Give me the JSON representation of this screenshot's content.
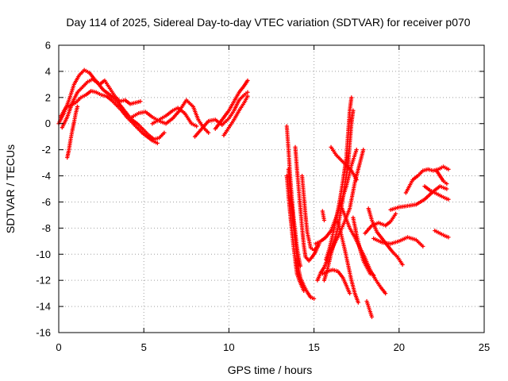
{
  "chart_data": {
    "type": "scatter",
    "title": "Day 114 of 2025, Sidereal Day-to-day VTEC variation (SDTVAR) for receiver p070",
    "xlabel": "GPS time / hours",
    "ylabel": "SDTVAR / TECUs",
    "xlim": [
      0,
      25
    ],
    "ylim": [
      -16,
      6
    ],
    "xticks": [
      "0",
      "5",
      "10",
      "15",
      "20",
      "25"
    ],
    "yticks": [
      "6",
      "4",
      "2",
      "0",
      "-2",
      "-4",
      "-6",
      "-8",
      "-10",
      "-12",
      "-14",
      "-16"
    ],
    "grid": true,
    "marker": "+",
    "color": "#ff0000",
    "series": [
      {
        "values": [
          [
            0.0,
            0.0
          ],
          [
            0.3,
            0.8
          ],
          [
            0.6,
            1.8
          ],
          [
            0.9,
            3.0
          ],
          [
            1.2,
            3.7
          ],
          [
            1.5,
            4.1
          ],
          [
            1.8,
            3.9
          ],
          [
            2.1,
            3.4
          ],
          [
            2.4,
            3.0
          ],
          [
            2.7,
            3.3
          ],
          [
            3.0,
            2.7
          ],
          [
            3.3,
            2.1
          ],
          [
            3.6,
            1.7
          ],
          [
            3.9,
            1.8
          ],
          [
            4.2,
            1.5
          ],
          [
            4.5,
            1.6
          ],
          [
            4.8,
            1.7
          ]
        ]
      },
      {
        "values": [
          [
            0.2,
            -0.3
          ],
          [
            0.5,
            0.5
          ],
          [
            0.8,
            1.6
          ],
          [
            1.1,
            2.4
          ],
          [
            1.4,
            2.8
          ],
          [
            1.7,
            3.2
          ],
          [
            2.0,
            3.4
          ],
          [
            2.3,
            3.1
          ],
          [
            2.6,
            2.6
          ],
          [
            2.9,
            2.3
          ],
          [
            3.2,
            2.0
          ],
          [
            3.5,
            1.6
          ],
          [
            3.8,
            1.1
          ],
          [
            4.1,
            0.6
          ],
          [
            4.4,
            0.2
          ],
          [
            4.7,
            -0.1
          ],
          [
            5.0,
            -0.5
          ],
          [
            5.3,
            -0.9
          ],
          [
            5.6,
            -1.2
          ],
          [
            5.9,
            -1.1
          ],
          [
            6.2,
            -0.7
          ]
        ]
      },
      {
        "values": [
          [
            0.1,
            0.5
          ],
          [
            0.4,
            1.2
          ],
          [
            0.7,
            1.4
          ],
          [
            1.0,
            1.6
          ],
          [
            1.3,
            2.0
          ],
          [
            1.6,
            2.2
          ],
          [
            1.9,
            2.5
          ],
          [
            2.2,
            2.4
          ],
          [
            2.5,
            2.2
          ],
          [
            2.8,
            2.1
          ],
          [
            3.1,
            1.8
          ],
          [
            3.4,
            1.4
          ],
          [
            3.7,
            1.0
          ],
          [
            4.0,
            0.5
          ],
          [
            4.3,
            0.1
          ],
          [
            4.6,
            -0.3
          ],
          [
            4.9,
            -0.7
          ],
          [
            5.2,
            -1.0
          ],
          [
            5.5,
            -1.3
          ],
          [
            5.8,
            -1.5
          ]
        ]
      },
      {
        "values": [
          [
            0.5,
            -2.6
          ],
          [
            0.6,
            -2.0
          ],
          [
            0.7,
            -1.2
          ],
          [
            0.8,
            -0.5
          ],
          [
            0.9,
            0.1
          ],
          [
            1.0,
            0.8
          ],
          [
            1.1,
            1.3
          ]
        ]
      },
      {
        "values": [
          [
            4.3,
            0.5
          ],
          [
            4.7,
            0.8
          ],
          [
            5.1,
            0.9
          ],
          [
            5.5,
            0.5
          ],
          [
            5.9,
            0.2
          ],
          [
            6.3,
            0.0
          ],
          [
            6.7,
            0.4
          ],
          [
            7.1,
            1.0
          ],
          [
            7.5,
            1.8
          ],
          [
            7.9,
            1.3
          ],
          [
            8.2,
            0.3
          ],
          [
            8.5,
            -0.3
          ],
          [
            8.8,
            -0.7
          ]
        ]
      },
      {
        "values": [
          [
            5.5,
            0.0
          ],
          [
            5.9,
            0.3
          ],
          [
            6.3,
            0.6
          ],
          [
            6.7,
            1.0
          ],
          [
            7.0,
            1.2
          ],
          [
            7.4,
            0.8
          ],
          [
            7.8,
            0.0
          ],
          [
            8.1,
            -0.2
          ]
        ]
      },
      {
        "values": [
          [
            8.0,
            -1.0
          ],
          [
            8.4,
            -0.4
          ],
          [
            8.8,
            0.2
          ],
          [
            9.2,
            0.3
          ],
          [
            9.6,
            -0.1
          ],
          [
            10.0,
            0.4
          ],
          [
            10.3,
            1.0
          ],
          [
            10.6,
            1.8
          ],
          [
            10.9,
            2.2
          ],
          [
            11.1,
            2.4
          ]
        ]
      },
      {
        "values": [
          [
            9.2,
            -0.4
          ],
          [
            9.6,
            0.3
          ],
          [
            10.0,
            1.0
          ],
          [
            10.3,
            1.7
          ],
          [
            10.6,
            2.4
          ],
          [
            10.9,
            2.9
          ],
          [
            11.1,
            3.3
          ]
        ]
      },
      {
        "values": [
          [
            9.7,
            -0.9
          ],
          [
            10.0,
            -0.3
          ],
          [
            10.3,
            0.3
          ],
          [
            10.6,
            1.0
          ],
          [
            10.9,
            1.6
          ],
          [
            11.1,
            2.1
          ]
        ]
      },
      {
        "values": [
          [
            13.4,
            -0.2
          ],
          [
            13.5,
            -2.0
          ],
          [
            13.6,
            -4.0
          ],
          [
            13.7,
            -5.8
          ],
          [
            13.8,
            -7.2
          ],
          [
            13.9,
            -8.3
          ],
          [
            14.0,
            -9.5
          ],
          [
            14.1,
            -10.3
          ],
          [
            14.2,
            -10.9
          ]
        ]
      },
      {
        "values": [
          [
            13.5,
            -3.5
          ],
          [
            13.6,
            -5.0
          ],
          [
            13.7,
            -6.5
          ],
          [
            13.8,
            -7.8
          ],
          [
            13.9,
            -9.0
          ],
          [
            14.0,
            -10.2
          ],
          [
            14.1,
            -11.2
          ],
          [
            14.2,
            -11.8
          ],
          [
            14.4,
            -12.4
          ],
          [
            14.6,
            -12.9
          ],
          [
            14.8,
            -13.3
          ],
          [
            15.0,
            -13.4
          ]
        ]
      },
      {
        "values": [
          [
            13.4,
            -4.0
          ],
          [
            13.5,
            -5.5
          ],
          [
            13.6,
            -6.9
          ],
          [
            13.7,
            -8.2
          ],
          [
            13.8,
            -9.4
          ],
          [
            13.9,
            -10.5
          ],
          [
            14.0,
            -11.5
          ],
          [
            14.2,
            -12.2
          ],
          [
            14.4,
            -12.8
          ]
        ]
      },
      {
        "values": [
          [
            13.9,
            -1.8
          ],
          [
            14.0,
            -3.5
          ],
          [
            14.1,
            -5.0
          ],
          [
            14.2,
            -6.5
          ],
          [
            14.3,
            -8.0
          ],
          [
            14.4,
            -9.3
          ],
          [
            14.5,
            -10.2
          ],
          [
            14.7,
            -10.5
          ],
          [
            14.9,
            -10.2
          ],
          [
            15.1,
            -9.8
          ],
          [
            15.3,
            -9.2
          ]
        ]
      },
      {
        "values": [
          [
            14.3,
            -4.0
          ],
          [
            14.4,
            -5.5
          ],
          [
            14.5,
            -7.0
          ],
          [
            14.6,
            -8.3
          ],
          [
            14.8,
            -9.5
          ],
          [
            15.0,
            -9.7
          ],
          [
            15.2,
            -9.4
          ]
        ]
      },
      {
        "values": [
          [
            15.2,
            -12.0
          ],
          [
            15.4,
            -11.4
          ],
          [
            15.6,
            -11.0
          ],
          [
            15.9,
            -10.0
          ],
          [
            16.2,
            -9.2
          ],
          [
            16.5,
            -8.4
          ],
          [
            16.8,
            -7.5
          ],
          [
            17.1,
            -6.5
          ],
          [
            17.4,
            -4.5
          ],
          [
            17.7,
            -3.0
          ],
          [
            17.9,
            -2.0
          ]
        ]
      },
      {
        "values": [
          [
            15.1,
            -9.2
          ],
          [
            15.4,
            -9.0
          ],
          [
            15.7,
            -8.7
          ],
          [
            16.0,
            -8.2
          ],
          [
            16.3,
            -7.2
          ],
          [
            16.6,
            -6.0
          ],
          [
            16.9,
            -4.8
          ],
          [
            17.2,
            -3.2
          ],
          [
            17.5,
            -2.0
          ]
        ]
      },
      {
        "values": [
          [
            15.5,
            -11.5
          ],
          [
            15.8,
            -11.3
          ],
          [
            16.1,
            -11.2
          ],
          [
            16.4,
            -11.3
          ],
          [
            16.7,
            -11.8
          ],
          [
            16.9,
            -12.4
          ],
          [
            17.1,
            -13.0
          ]
        ]
      },
      {
        "values": [
          [
            15.5,
            -6.7
          ],
          [
            15.6,
            -7.4
          ]
        ]
      },
      {
        "values": [
          [
            15.6,
            -12.0
          ],
          [
            15.8,
            -11.1
          ],
          [
            16.0,
            -10.0
          ],
          [
            16.2,
            -9.0
          ],
          [
            16.4,
            -8.0
          ],
          [
            16.6,
            -6.5
          ],
          [
            16.8,
            -4.8
          ],
          [
            17.0,
            -3.2
          ],
          [
            17.1,
            -1.5
          ],
          [
            17.2,
            0.0
          ],
          [
            17.3,
            1.0
          ]
        ]
      },
      {
        "values": [
          [
            15.7,
            -10.4
          ],
          [
            15.9,
            -9.6
          ],
          [
            16.1,
            -8.5
          ],
          [
            16.3,
            -7.3
          ],
          [
            16.5,
            -6.0
          ],
          [
            16.7,
            -4.4
          ],
          [
            16.9,
            -2.6
          ],
          [
            17.0,
            -0.8
          ],
          [
            17.1,
            1.0
          ],
          [
            17.2,
            2.0
          ]
        ]
      },
      {
        "values": [
          [
            16.0,
            -1.8
          ],
          [
            16.3,
            -2.4
          ],
          [
            16.6,
            -2.8
          ],
          [
            16.9,
            -3.2
          ],
          [
            17.2,
            -3.6
          ],
          [
            17.5,
            -4.3
          ]
        ]
      },
      {
        "values": [
          [
            16.4,
            -7.5
          ],
          [
            16.6,
            -8.5
          ],
          [
            16.8,
            -9.6
          ],
          [
            17.0,
            -10.8
          ],
          [
            17.2,
            -12.0
          ],
          [
            17.4,
            -13.0
          ],
          [
            17.6,
            -13.7
          ]
        ]
      },
      {
        "values": [
          [
            16.5,
            -6.0
          ],
          [
            16.8,
            -7.0
          ],
          [
            17.1,
            -8.0
          ],
          [
            17.4,
            -8.7
          ],
          [
            17.7,
            -9.5
          ],
          [
            18.0,
            -10.3
          ],
          [
            18.3,
            -11.2
          ],
          [
            18.6,
            -11.9
          ],
          [
            18.9,
            -12.5
          ],
          [
            19.2,
            -13.0
          ]
        ]
      },
      {
        "values": [
          [
            17.3,
            -7.2
          ],
          [
            17.5,
            -8.5
          ],
          [
            17.7,
            -9.6
          ],
          [
            17.9,
            -10.5
          ],
          [
            18.1,
            -11.0
          ],
          [
            18.3,
            -11.5
          ],
          [
            18.5,
            -11.6
          ]
        ]
      },
      {
        "values": [
          [
            18.1,
            -13.6
          ],
          [
            18.2,
            -14.0
          ],
          [
            18.3,
            -14.4
          ],
          [
            18.4,
            -14.8
          ]
        ]
      },
      {
        "values": [
          [
            18.2,
            -6.5
          ],
          [
            18.4,
            -7.4
          ],
          [
            18.7,
            -8.3
          ],
          [
            19.0,
            -8.8
          ],
          [
            19.3,
            -9.3
          ],
          [
            19.6,
            -9.8
          ],
          [
            19.9,
            -10.2
          ],
          [
            20.2,
            -10.8
          ]
        ]
      },
      {
        "values": [
          [
            18.0,
            -8.4
          ],
          [
            18.4,
            -7.8
          ],
          [
            18.8,
            -7.6
          ],
          [
            19.2,
            -7.8
          ],
          [
            19.5,
            -7.5
          ],
          [
            19.8,
            -6.9
          ]
        ]
      },
      {
        "values": [
          [
            18.5,
            -8.8
          ],
          [
            19.0,
            -9.1
          ],
          [
            19.5,
            -9.2
          ],
          [
            20.0,
            -9.0
          ],
          [
            20.5,
            -8.7
          ],
          [
            21.0,
            -8.9
          ],
          [
            21.4,
            -9.4
          ]
        ]
      },
      {
        "values": [
          [
            19.5,
            -6.6
          ],
          [
            20.0,
            -6.4
          ],
          [
            20.5,
            -6.3
          ],
          [
            21.0,
            -6.2
          ],
          [
            21.5,
            -5.8
          ],
          [
            22.0,
            -5.2
          ],
          [
            22.4,
            -4.8
          ],
          [
            22.8,
            -5.0
          ]
        ]
      },
      {
        "values": [
          [
            20.4,
            -5.3
          ],
          [
            20.6,
            -4.8
          ],
          [
            20.8,
            -4.3
          ],
          [
            21.1,
            -4.0
          ],
          [
            21.4,
            -3.6
          ],
          [
            21.7,
            -3.5
          ],
          [
            22.0,
            -3.6
          ],
          [
            22.3,
            -3.5
          ],
          [
            22.6,
            -3.3
          ],
          [
            22.9,
            -3.5
          ]
        ]
      },
      {
        "values": [
          [
            21.5,
            -4.8
          ],
          [
            21.8,
            -5.1
          ],
          [
            22.1,
            -5.3
          ],
          [
            22.4,
            -5.5
          ],
          [
            22.7,
            -5.7
          ],
          [
            22.9,
            -5.8
          ]
        ]
      },
      {
        "values": [
          [
            22.2,
            -3.6
          ],
          [
            22.4,
            -4.0
          ],
          [
            22.6,
            -4.4
          ],
          [
            22.8,
            -4.6
          ]
        ]
      },
      {
        "values": [
          [
            22.1,
            -8.2
          ],
          [
            22.4,
            -8.4
          ],
          [
            22.7,
            -8.6
          ],
          [
            22.9,
            -8.7
          ]
        ]
      }
    ]
  }
}
